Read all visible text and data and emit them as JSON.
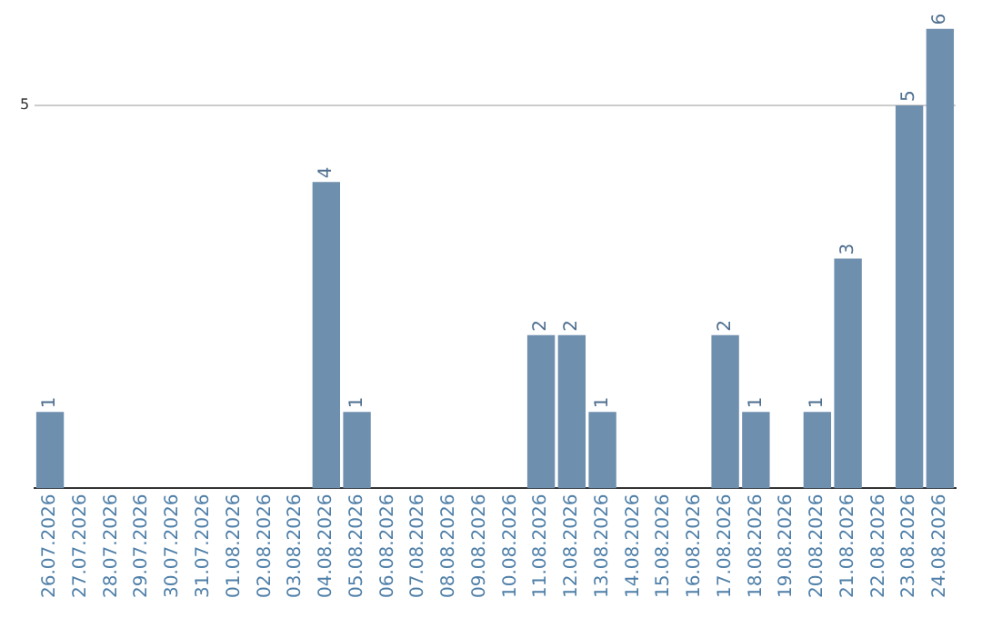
{
  "chart_data": {
    "type": "bar",
    "categories": [
      "26.07.2026",
      "27.07.2026",
      "28.07.2026",
      "29.07.2026",
      "30.07.2026",
      "31.07.2026",
      "01.08.2026",
      "02.08.2026",
      "03.08.2026",
      "04.08.2026",
      "05.08.2026",
      "06.08.2026",
      "07.08.2026",
      "08.08.2026",
      "09.08.2026",
      "10.08.2026",
      "11.08.2026",
      "12.08.2026",
      "13.08.2026",
      "14.08.2026",
      "15.08.2026",
      "16.08.2026",
      "17.08.2026",
      "18.08.2026",
      "19.08.2026",
      "20.08.2026",
      "21.08.2026",
      "22.08.2026",
      "23.08.2026",
      "24.08.2026"
    ],
    "values": [
      1,
      0,
      0,
      0,
      0,
      0,
      0,
      0,
      0,
      4,
      1,
      0,
      0,
      0,
      0,
      0,
      2,
      2,
      1,
      0,
      0,
      0,
      2,
      1,
      0,
      1,
      3,
      0,
      5,
      6
    ],
    "value_labels": [
      "1",
      null,
      null,
      null,
      null,
      null,
      null,
      null,
      null,
      "4",
      "1",
      null,
      null,
      null,
      null,
      null,
      "2",
      "2",
      "1",
      null,
      null,
      null,
      "2",
      "1",
      null,
      "1",
      "3",
      null,
      "5",
      "6"
    ],
    "color": "#6f8fae",
    "ylim": [
      0,
      6
    ],
    "yticks": [
      5
    ],
    "grid": "y",
    "legend": false
  }
}
